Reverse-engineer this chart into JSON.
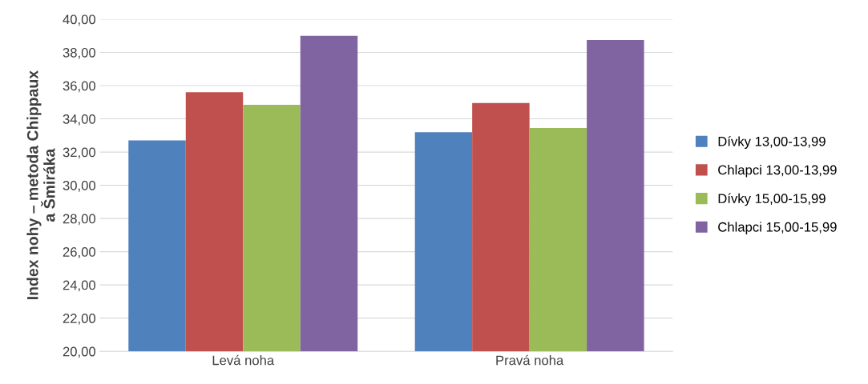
{
  "chart_data": {
    "type": "bar",
    "ylabel": "Index nohy – metoda Chippaux\na Šmiráka",
    "categories": [
      "Levá noha",
      "Pravá noha"
    ],
    "series": [
      {
        "name": "Dívky 13,00-13,99",
        "color": "#4f81bd",
        "values": [
          32.7,
          33.2
        ]
      },
      {
        "name": "Chlapci 13,00-13,99",
        "color": "#c0504d",
        "values": [
          35.6,
          34.95
        ]
      },
      {
        "name": "Dívky 15,00-15,99",
        "color": "#9bbb59",
        "values": [
          34.85,
          33.45
        ]
      },
      {
        "name": "Chlapci 15,00-15,99",
        "color": "#8064a2",
        "values": [
          39.0,
          38.75
        ]
      }
    ],
    "ylim": [
      20,
      40
    ],
    "yticks": [
      {
        "value": 20,
        "label": "20,00"
      },
      {
        "value": 22,
        "label": "22,00"
      },
      {
        "value": 24,
        "label": "24,00"
      },
      {
        "value": 26,
        "label": "26,00"
      },
      {
        "value": 28,
        "label": "28,00"
      },
      {
        "value": 30,
        "label": "30,00"
      },
      {
        "value": 32,
        "label": "32,00"
      },
      {
        "value": 34,
        "label": "34,00"
      },
      {
        "value": 36,
        "label": "36,00"
      },
      {
        "value": 38,
        "label": "38,00"
      },
      {
        "value": 40,
        "label": "40,00"
      }
    ],
    "grid": "y",
    "legend": "right"
  }
}
